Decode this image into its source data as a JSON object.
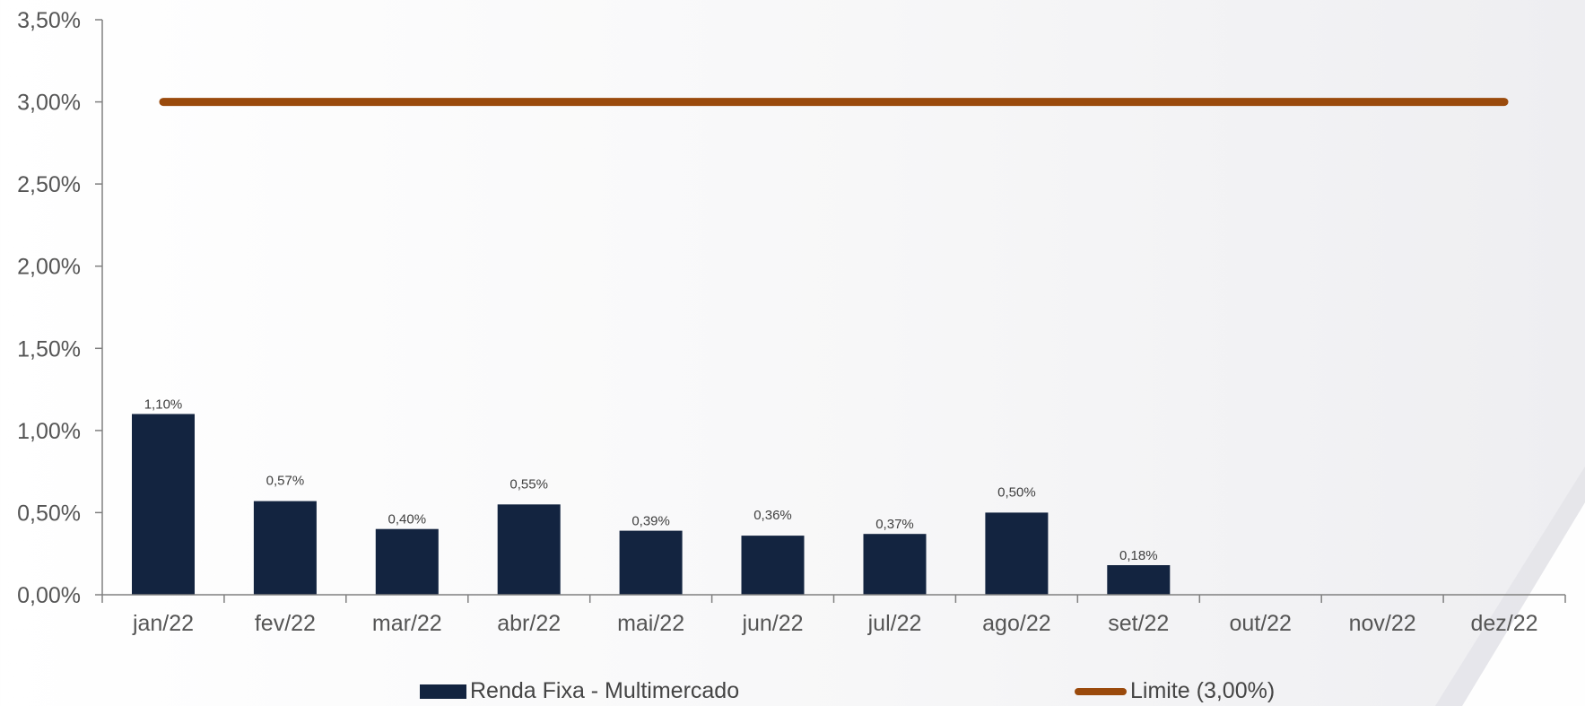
{
  "chart_data": {
    "type": "bar",
    "categories": [
      "jan/22",
      "fev/22",
      "mar/22",
      "abr/22",
      "mai/22",
      "jun/22",
      "jul/22",
      "ago/22",
      "set/22",
      "out/22",
      "nov/22",
      "dez/22"
    ],
    "series": [
      {
        "name": "Renda Fixa - Multimercado",
        "kind": "bar",
        "values": [
          1.1,
          0.57,
          0.4,
          0.55,
          0.39,
          0.36,
          0.37,
          0.5,
          0.18,
          null,
          null,
          null
        ],
        "labels": [
          "1,10%",
          "0,57%",
          "0,40%",
          "0,55%",
          "0,39%",
          "0,36%",
          "0,37%",
          "0,50%",
          "0,18%",
          "",
          "",
          ""
        ],
        "color": "#132440"
      },
      {
        "name": "Limite (3,00%)",
        "kind": "line",
        "values": [
          3.0,
          3.0,
          3.0,
          3.0,
          3.0,
          3.0,
          3.0,
          3.0,
          3.0,
          3.0,
          3.0,
          3.0
        ],
        "color": "#9a4a0c"
      }
    ],
    "ylim": [
      0,
      3.5
    ],
    "yticks": [
      0,
      0.5,
      1.0,
      1.5,
      2.0,
      2.5,
      3.0,
      3.5
    ],
    "ytick_labels": [
      "0,00%",
      "0,50%",
      "1,00%",
      "1,50%",
      "2,00%",
      "2,50%",
      "3,00%",
      "3,50%"
    ],
    "grid": false,
    "legend_position": "bottom"
  },
  "legend": {
    "bar_label": "Renda Fixa - Multimercado",
    "line_label": "Limite (3,00%)"
  },
  "colors": {
    "axis": "#808080",
    "tick_text": "#555555",
    "data_label_text": "#404040"
  }
}
